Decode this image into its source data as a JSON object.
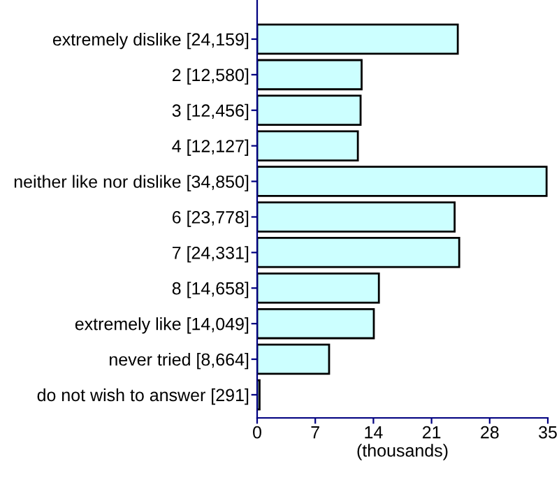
{
  "chart_data": {
    "type": "bar",
    "orientation": "horizontal",
    "xlabel": "(thousands)",
    "categories": [
      "extremely dislike [24,159]",
      "2 [12,580]",
      "3 [12,456]",
      "4 [12,127]",
      "neither like nor dislike [34,850]",
      "6 [23,778]",
      "7 [24,331]",
      "8 [14,658]",
      "extremely like [14,049]",
      "never tried [8,664]",
      "do not wish to answer [291]"
    ],
    "values": [
      24.159,
      12.58,
      12.456,
      12.127,
      34.85,
      23.778,
      24.331,
      14.658,
      14.049,
      8.664,
      0.291
    ],
    "color": "#ccffff",
    "xlim": [
      0,
      35
    ],
    "xticks": [
      0,
      7,
      14,
      21,
      28,
      35
    ],
    "grid": false,
    "legend": false
  }
}
